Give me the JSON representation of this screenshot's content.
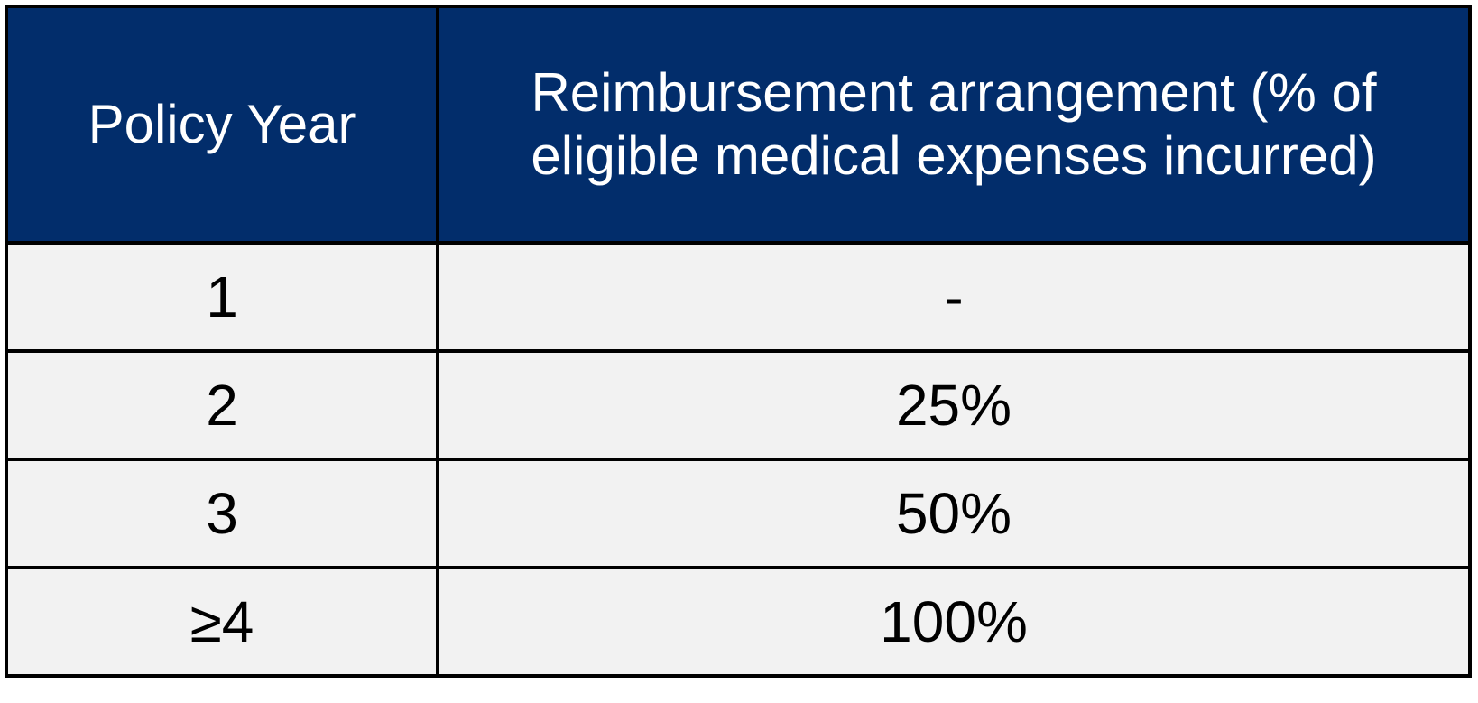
{
  "table": {
    "header": [
      "Policy Year",
      "Reimbursement arrangement (% of eligible medical expenses incurred)"
    ],
    "rows": [
      [
        "1",
        "-"
      ],
      [
        "2",
        "25%"
      ],
      [
        "3",
        "50%"
      ],
      [
        "≥4",
        "100%"
      ]
    ]
  }
}
